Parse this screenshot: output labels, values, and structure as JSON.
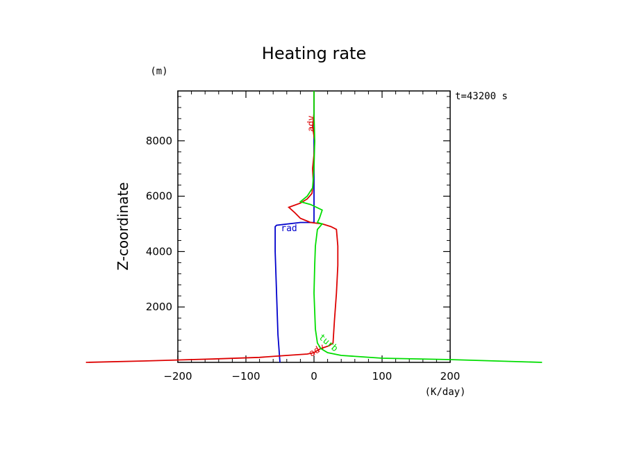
{
  "chart_data": {
    "type": "line",
    "title": "Heating rate",
    "xlabel": "(K/day)",
    "ylabel": "Z-coordinate",
    "yunit": "(m)",
    "time_label": "t=43200 s",
    "xlim": [
      -200,
      200
    ],
    "ylim": [
      0,
      9800
    ],
    "xticks": [
      -200,
      -100,
      0,
      100,
      200
    ],
    "xtick_labels": [
      "−200",
      "−100",
      "0",
      "100",
      "200"
    ],
    "yticks": [
      2000,
      4000,
      6000,
      8000
    ],
    "ytick_labels": [
      "2000",
      "4000",
      "6000",
      "8000"
    ],
    "grid": false,
    "series": [
      {
        "name": "rad",
        "color": "#0000cc",
        "points": [
          [
            -50,
            0
          ],
          [
            -53,
            1000
          ],
          [
            -55,
            2500
          ],
          [
            -57,
            4000
          ],
          [
            -57,
            4900
          ],
          [
            -55,
            4950
          ],
          [
            -20,
            5050
          ],
          [
            0,
            5050
          ],
          [
            0,
            6000
          ],
          [
            0,
            6600
          ],
          [
            0,
            7000
          ],
          [
            0,
            8000
          ],
          [
            0,
            9000
          ],
          [
            0,
            9800
          ]
        ]
      },
      {
        "name": "adv",
        "color": "#dd0000",
        "points": [
          [
            -335,
            0
          ],
          [
            -250,
            50
          ],
          [
            -150,
            120
          ],
          [
            -80,
            180
          ],
          [
            -40,
            250
          ],
          [
            -10,
            300
          ],
          [
            0,
            350
          ],
          [
            3,
            400
          ],
          [
            10,
            500
          ],
          [
            22,
            600
          ],
          [
            28,
            700
          ],
          [
            30,
            1500
          ],
          [
            33,
            2500
          ],
          [
            35,
            3500
          ],
          [
            35,
            4200
          ],
          [
            33,
            4800
          ],
          [
            25,
            4900
          ],
          [
            12,
            5000
          ],
          [
            -5,
            5050
          ],
          [
            -20,
            5200
          ],
          [
            -28,
            5400
          ],
          [
            -37,
            5600
          ],
          [
            -20,
            5750
          ],
          [
            -10,
            5900
          ],
          [
            -3,
            6100
          ],
          [
            -1,
            6500
          ],
          [
            -2,
            7000
          ],
          [
            0,
            7500
          ],
          [
            1,
            8000
          ],
          [
            -2,
            8500
          ],
          [
            0,
            9000
          ],
          [
            0,
            9800
          ]
        ]
      },
      {
        "name": "turb",
        "color": "#00dd00",
        "points": [
          [
            335,
            0
          ],
          [
            200,
            100
          ],
          [
            100,
            150
          ],
          [
            40,
            250
          ],
          [
            20,
            350
          ],
          [
            10,
            500
          ],
          [
            5,
            700
          ],
          [
            2,
            1200
          ],
          [
            0,
            2500
          ],
          [
            1,
            3500
          ],
          [
            2,
            4200
          ],
          [
            5,
            4800
          ],
          [
            12,
            5000
          ],
          [
            5,
            5050
          ],
          [
            8,
            5200
          ],
          [
            12,
            5500
          ],
          [
            -5,
            5700
          ],
          [
            -20,
            5800
          ],
          [
            -10,
            6000
          ],
          [
            -2,
            6300
          ],
          [
            0,
            7000
          ],
          [
            1,
            8000
          ],
          [
            0,
            9000
          ],
          [
            0,
            9800
          ]
        ]
      }
    ]
  }
}
